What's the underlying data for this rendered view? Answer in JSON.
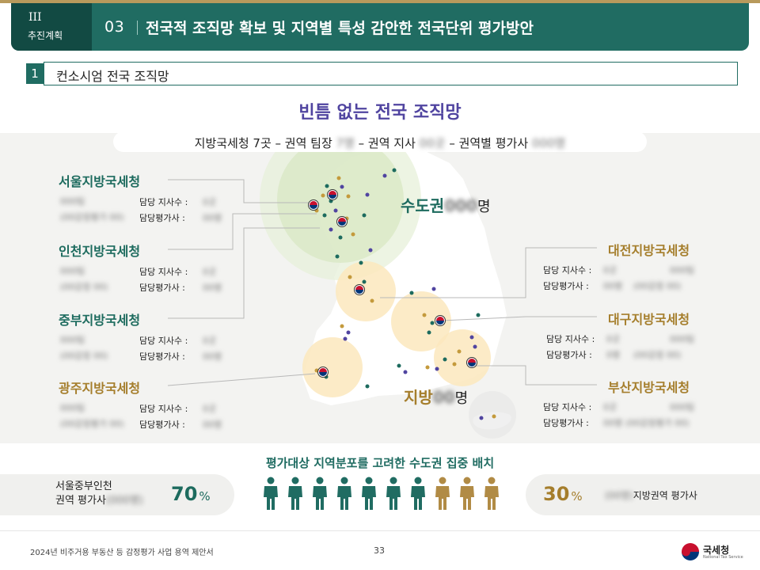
{
  "header": {
    "section_roman": "III",
    "section_label": "추진계획",
    "number": "03",
    "title": "전국적 조직망 확보 및 지역별 특성 감안한 전국단위 평가방안"
  },
  "subsection": {
    "number": "1",
    "title": "컨소시엄 전국 조직망"
  },
  "main": {
    "title": "빈틈 없는 전국 조직망",
    "subtitle_parts": [
      "지방국세청 7곳 – 권역 팀장 ",
      "7명",
      " – 권역 지사 ",
      "00곳",
      " – 권역별 평가사 ",
      "000명"
    ]
  },
  "stat_labels": {
    "branches": "담당 지사수 :",
    "appraisers": "담당평가사 :"
  },
  "offices": [
    {
      "name": "서울지방국세청",
      "blur_lines": [
        "000팀",
        "(00감정평가 00)"
      ],
      "blur_values": [
        "0곳",
        "00명"
      ]
    },
    {
      "name": "인천지방국세청",
      "blur_lines": [
        "000팀",
        "(00감정 00)"
      ],
      "blur_values": [
        "0곳",
        "00명"
      ]
    },
    {
      "name": "중부지방국세청",
      "blur_lines": [
        "000팀",
        "(00감정 00)"
      ],
      "blur_values": [
        "0곳",
        "00명"
      ]
    },
    {
      "name": "광주지방국세청",
      "blur_lines": [
        "000팀",
        "(00감정평가 00)"
      ],
      "blur_values": [
        "0곳",
        "00명"
      ]
    },
    {
      "name": "대전지방국세청",
      "blur_lines": [
        "000팀",
        "(00감정 00)"
      ],
      "blur_values": [
        "0곳",
        "00명"
      ]
    },
    {
      "name": "대구지방국세청",
      "blur_lines": [
        "000팀",
        "(00감정 00)"
      ],
      "blur_values": [
        "0곳",
        "0명"
      ]
    },
    {
      "name": "부산지방국세청",
      "blur_lines": [
        "000팀",
        "(00감정평가 00)"
      ],
      "blur_values": [
        "0곳",
        "00명"
      ]
    }
  ],
  "regions": {
    "capital_label": "수도권",
    "capital_count": "000",
    "capital_unit": "명",
    "local_label": "지방",
    "local_count": "00",
    "local_unit": "명"
  },
  "distribution": {
    "title": "평가대상 지역분포를 고려한 수도권 집중 배치",
    "left_label_line1": "서울중부인천",
    "left_label_line2": "권역 평가사",
    "left_blur": "(000명)",
    "left_pct": "70",
    "right_pct": "30",
    "pct_sign": "%",
    "right_blur": "(00명)",
    "right_label": "지방권역 평가사",
    "capital_people": 7,
    "local_people": 3,
    "capital_color": "#206c62",
    "local_color": "#b18b45"
  },
  "footer": {
    "text": "2024년 비주거용 부동산 등 감정평가 사업 용역 제안서",
    "page": "33",
    "logo_text": "국세청",
    "logo_sub": "National Tax Service"
  },
  "colors": {
    "teal": "#206c62",
    "gold": "#a57e2c",
    "purple": "#5044a0"
  }
}
